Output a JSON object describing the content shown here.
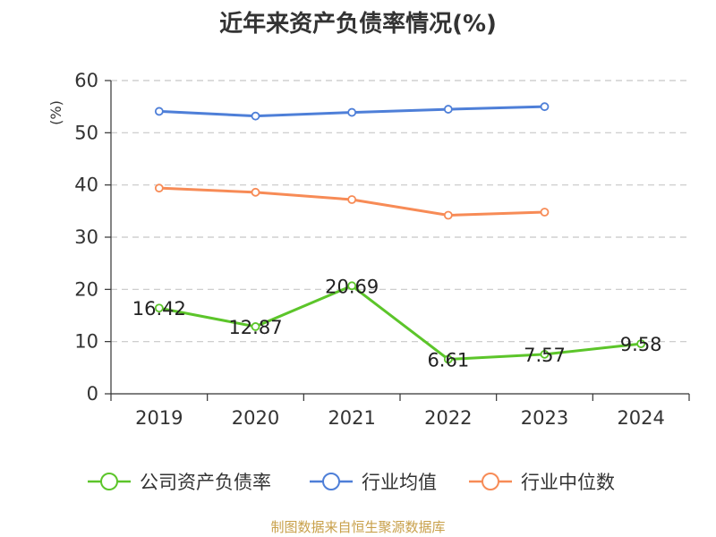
{
  "chart_data": {
    "type": "line",
    "title": "近年来资产负债率情况(%)",
    "ylabel": "(%)",
    "xlabel": "",
    "categories": [
      "2019",
      "2020",
      "2021",
      "2022",
      "2023",
      "2024"
    ],
    "ylim": [
      0,
      60
    ],
    "yticks": [
      0,
      10,
      20,
      30,
      40,
      50,
      60
    ],
    "grid": true,
    "legend_position": "bottom",
    "series": [
      {
        "name": "公司资产负债率",
        "color": "#5cc52a",
        "values": [
          16.42,
          12.87,
          20.69,
          6.61,
          7.57,
          9.58
        ],
        "labels": [
          "16.42",
          "12.87",
          "20.69",
          "6.61",
          "7.57",
          "9.58"
        ]
      },
      {
        "name": "行业均值",
        "color": "#4e7fd8",
        "values": [
          54.1,
          53.2,
          53.9,
          54.5,
          55.0,
          null
        ]
      },
      {
        "name": "行业中位数",
        "color": "#f78b56",
        "values": [
          39.4,
          38.6,
          37.2,
          34.2,
          34.8,
          null
        ]
      }
    ]
  },
  "source": {
    "text": "制图数据来自恒生聚源数据库",
    "color": "#c8a04a"
  }
}
